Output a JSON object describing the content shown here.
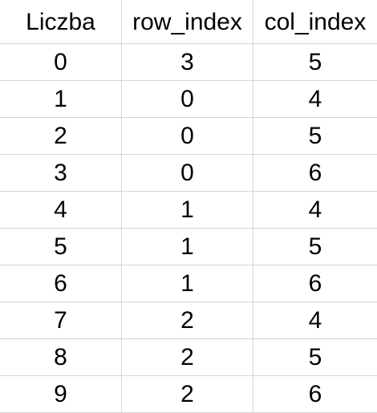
{
  "table": {
    "columns": [
      "Liczba",
      "row_index",
      "col_index"
    ],
    "rows": [
      [
        "0",
        "3",
        "5"
      ],
      [
        "1",
        "0",
        "4"
      ],
      [
        "2",
        "0",
        "5"
      ],
      [
        "3",
        "0",
        "6"
      ],
      [
        "4",
        "1",
        "4"
      ],
      [
        "5",
        "1",
        "5"
      ],
      [
        "6",
        "1",
        "6"
      ],
      [
        "7",
        "2",
        "4"
      ],
      [
        "8",
        "2",
        "5"
      ],
      [
        "9",
        "2",
        "6"
      ]
    ]
  },
  "colors": {
    "gridline": "#d4d4d4",
    "text": "#000000",
    "background": "#ffffff"
  }
}
